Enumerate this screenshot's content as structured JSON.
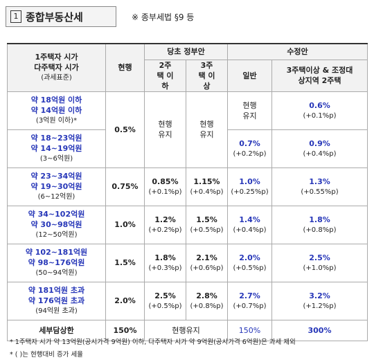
{
  "header": {
    "number": "1",
    "title": "종합부동산세",
    "note": "※ 종부세법 §9 등"
  },
  "table": {
    "head": {
      "price_single": "1주택자 시가",
      "price_multi": "다주택자 시가",
      "tax_base": "(과세표준)",
      "current": "현행",
      "gov": "당초 정부안",
      "gov_two": "2주택 이하",
      "gov_three": "3주택 이상",
      "rev": "수정안",
      "rev_general": "일반",
      "rev_three": "3주택이상 & 조정대상지역 2주택"
    },
    "rows": [
      {
        "single": "약 18억원 이하",
        "multi": "약 14억원 이하",
        "base": "(3억원 이하)*",
        "current": "0.5%",
        "gov_two": {
          "rate": "현행 유지"
        },
        "gov_three": {
          "rate": "현행 유지"
        },
        "rev_general": {
          "rate": "현행 유지"
        },
        "rev_three": {
          "rate": "0.6%",
          "diff": "(+0.1%p)"
        }
      },
      {
        "single": "약 18~23억원",
        "multi": "약 14~19억원",
        "base": "(3~6억원)",
        "rev_general": {
          "rate": "0.7%",
          "diff": "(+0.2%p)"
        },
        "rev_three": {
          "rate": "0.9%",
          "diff": "(+0.4%p)"
        }
      },
      {
        "single": "약 23~34억원",
        "multi": "약 19~30억원",
        "base": "(6~12억원)",
        "current": "0.75%",
        "gov_two": {
          "rate": "0.85%",
          "diff": "(+0.1%p)"
        },
        "gov_three": {
          "rate": "1.15%",
          "diff": "(+0.4%p)"
        },
        "rev_general": {
          "rate": "1.0%",
          "diff": "(+0.25%p)"
        },
        "rev_three": {
          "rate": "1.3%",
          "diff": "(+0.55%p)"
        }
      },
      {
        "single": "약 34~102억원",
        "multi": "약 30~98억원",
        "base": "(12~50억원)",
        "current": "1.0%",
        "gov_two": {
          "rate": "1.2%",
          "diff": "(+0.2%p)"
        },
        "gov_three": {
          "rate": "1.5%",
          "diff": "(+0.5%p)"
        },
        "rev_general": {
          "rate": "1.4%",
          "diff": "(+0.4%p)"
        },
        "rev_three": {
          "rate": "1.8%",
          "diff": "(+0.8%p)"
        }
      },
      {
        "single": "약 102~181억원",
        "multi": "약 98~176억원",
        "base": "(50~94억원)",
        "current": "1.5%",
        "gov_two": {
          "rate": "1.8%",
          "diff": "(+0.3%p)"
        },
        "gov_three": {
          "rate": "2.1%",
          "diff": "(+0.6%p)"
        },
        "rev_general": {
          "rate": "2.0%",
          "diff": "(+0.5%p)"
        },
        "rev_three": {
          "rate": "2.5%",
          "diff": "(+1.0%p)"
        }
      },
      {
        "single": "약 181억원 초과",
        "multi": "약 176억원 초과",
        "base": "(94억원 초과)",
        "current": "2.0%",
        "gov_two": {
          "rate": "2.5%",
          "diff": "(+0.5%p)"
        },
        "gov_three": {
          "rate": "2.8%",
          "diff": "(+0.8%p)"
        },
        "rev_general": {
          "rate": "2.7%",
          "diff": "(+0.7%p)"
        },
        "rev_three": {
          "rate": "3.2%",
          "diff": "(+1.2%p)"
        }
      }
    ],
    "cap_row": {
      "label": "세부담상한",
      "current": "150%",
      "gov": "현행유지",
      "rev_general": "150%",
      "rev_three": "300%"
    }
  },
  "footnotes": [
    "* 1주택자 시가 약 13억원(공시가격 9억원) 이하, 다주택자 시가 약 9억원(공시가격 6억원)은 과세 제외",
    "* ( )는 현행대비 증가 세율"
  ]
}
